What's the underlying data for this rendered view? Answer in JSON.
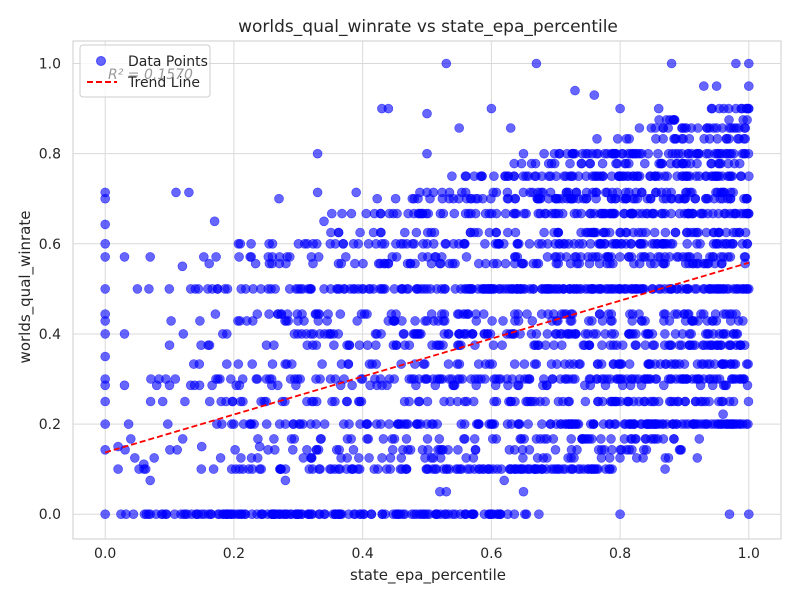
{
  "chart_data": {
    "type": "scatter",
    "title": "worlds_qual_winrate vs state_epa_percentile",
    "xlabel": "state_epa_percentile",
    "ylabel": "worlds_qual_winrate",
    "xlim": [
      -0.05,
      1.05
    ],
    "ylim": [
      -0.055,
      1.05
    ],
    "xticks": [
      "0.0",
      "0.2",
      "0.4",
      "0.6",
      "0.8",
      "1.0"
    ],
    "yticks": [
      "0.0",
      "0.2",
      "0.4",
      "0.6",
      "0.8",
      "1.0"
    ],
    "grid": true,
    "legend_position": "top-left",
    "annotation": "R² = 0.1570",
    "series": [
      {
        "name": "Data Points",
        "kind": "scatter",
        "color": "#0000ff",
        "opacity": 0.6,
        "y_levels": [
          0.0,
          0.1,
          0.125,
          0.143,
          0.167,
          0.2,
          0.25,
          0.286,
          0.3,
          0.333,
          0.375,
          0.4,
          0.429,
          0.444,
          0.5,
          0.556,
          0.571,
          0.6,
          0.625,
          0.667,
          0.7,
          0.714,
          0.75,
          0.778,
          0.8,
          0.833,
          0.857,
          0.875,
          0.9,
          1.0
        ],
        "points": [
          [
            0.0,
            0.0
          ],
          [
            0.0,
            0.143
          ],
          [
            0.0,
            0.2
          ],
          [
            0.0,
            0.25
          ],
          [
            0.0,
            0.286
          ],
          [
            0.0,
            0.3
          ],
          [
            0.0,
            0.35
          ],
          [
            0.0,
            0.4
          ],
          [
            0.0,
            0.429
          ],
          [
            0.0,
            0.444
          ],
          [
            0.0,
            0.5
          ],
          [
            0.0,
            0.571
          ],
          [
            0.0,
            0.6
          ],
          [
            0.0,
            0.643
          ],
          [
            0.0,
            0.7
          ],
          [
            0.0,
            0.714
          ],
          [
            0.02,
            0.1
          ],
          [
            0.02,
            0.15
          ],
          [
            0.03,
            0.286
          ],
          [
            0.03,
            0.4
          ],
          [
            0.03,
            0.571
          ],
          [
            0.05,
            0.5
          ],
          [
            0.06,
            0.111
          ],
          [
            0.07,
            0.075
          ],
          [
            0.07,
            0.571
          ],
          [
            0.08,
            0.286
          ],
          [
            0.1,
            0.286
          ],
          [
            0.11,
            0.714
          ],
          [
            0.12,
            0.55
          ],
          [
            0.13,
            0.714
          ],
          [
            0.14,
            0.5
          ],
          [
            0.15,
            0.15
          ],
          [
            0.16,
            0.375
          ],
          [
            0.17,
            0.65
          ],
          [
            0.19,
            0.5
          ],
          [
            0.2,
            0.2
          ],
          [
            0.21,
            0.6
          ],
          [
            0.22,
            0.429
          ],
          [
            0.23,
            0.5
          ],
          [
            0.24,
            0.15
          ],
          [
            0.25,
            0.25
          ],
          [
            0.26,
            0.333
          ],
          [
            0.27,
            0.7
          ],
          [
            0.28,
            0.075
          ],
          [
            0.29,
            0.333
          ],
          [
            0.3,
            0.5
          ],
          [
            0.31,
            0.6
          ],
          [
            0.33,
            0.8
          ],
          [
            0.33,
            0.714
          ],
          [
            0.34,
            0.65
          ],
          [
            0.35,
            0.3
          ],
          [
            0.36,
            0.5
          ],
          [
            0.37,
            0.6
          ],
          [
            0.39,
            0.714
          ],
          [
            0.4,
            0.3
          ],
          [
            0.41,
            0.125
          ],
          [
            0.42,
            0.4
          ],
          [
            0.43,
            0.6
          ],
          [
            0.43,
            0.9
          ],
          [
            0.44,
            0.9
          ],
          [
            0.45,
            0.429
          ],
          [
            0.46,
            0.5
          ],
          [
            0.48,
            0.6
          ],
          [
            0.49,
            0.2
          ],
          [
            0.5,
            0.5
          ],
          [
            0.5,
            0.429
          ],
          [
            0.5,
            0.3
          ],
          [
            0.5,
            0.2
          ],
          [
            0.5,
            0.1
          ],
          [
            0.5,
            0.0
          ],
          [
            0.5,
            0.6
          ],
          [
            0.5,
            0.714
          ],
          [
            0.5,
            0.8
          ],
          [
            0.5,
            0.889
          ],
          [
            0.52,
            0.05
          ],
          [
            0.53,
            0.05
          ],
          [
            0.53,
            1.0
          ],
          [
            0.55,
            0.857
          ],
          [
            0.55,
            0.4
          ],
          [
            0.56,
            0.667
          ],
          [
            0.57,
            0.5
          ],
          [
            0.58,
            0.2
          ],
          [
            0.59,
            0.3
          ],
          [
            0.6,
            0.5
          ],
          [
            0.6,
            0.9
          ],
          [
            0.61,
            0.6
          ],
          [
            0.62,
            0.075
          ],
          [
            0.63,
            0.857
          ],
          [
            0.64,
            0.5
          ],
          [
            0.65,
            0.05
          ],
          [
            0.65,
            0.8
          ],
          [
            0.66,
            0.714
          ],
          [
            0.67,
            1.0
          ],
          [
            0.67,
            0.4
          ],
          [
            0.68,
            0.286
          ],
          [
            0.7,
            0.5
          ],
          [
            0.72,
            0.6
          ],
          [
            0.73,
            0.94
          ],
          [
            0.73,
            0.2
          ],
          [
            0.75,
            0.8
          ],
          [
            0.75,
            0.4
          ],
          [
            0.76,
            0.93
          ],
          [
            0.77,
            0.6
          ],
          [
            0.78,
            0.3
          ],
          [
            0.78,
            0.714
          ],
          [
            0.8,
            0.9
          ],
          [
            0.8,
            0.5
          ],
          [
            0.8,
            0.0
          ],
          [
            0.82,
            0.8
          ],
          [
            0.83,
            0.6
          ],
          [
            0.84,
            0.4
          ],
          [
            0.85,
            0.2
          ],
          [
            0.86,
            0.9
          ],
          [
            0.86,
            0.75
          ],
          [
            0.87,
            0.1
          ],
          [
            0.88,
            1.0
          ],
          [
            0.88,
            0.5
          ],
          [
            0.9,
            0.667
          ],
          [
            0.9,
            0.3
          ],
          [
            0.9,
            0.857
          ],
          [
            0.92,
            0.8
          ],
          [
            0.92,
            0.125
          ],
          [
            0.93,
            0.95
          ],
          [
            0.94,
            0.5
          ],
          [
            0.95,
            0.95
          ],
          [
            0.95,
            0.6
          ],
          [
            0.96,
            0.4
          ],
          [
            0.96,
            0.222
          ],
          [
            0.97,
            0.0
          ],
          [
            0.97,
            0.75
          ],
          [
            0.98,
            1.0
          ],
          [
            0.98,
            0.9
          ],
          [
            0.98,
            0.3
          ],
          [
            0.99,
            0.8
          ],
          [
            0.99,
            0.6
          ],
          [
            1.0,
            1.0
          ],
          [
            1.0,
            0.95
          ],
          [
            1.0,
            0.9
          ],
          [
            1.0,
            0.5
          ],
          [
            1.0,
            0.0
          ]
        ]
      },
      {
        "name": "Trend Line",
        "kind": "line",
        "color": "#ff0000",
        "style": "dashed",
        "x": [
          0.0,
          1.0
        ],
        "y": [
          0.137,
          0.558
        ]
      }
    ]
  }
}
